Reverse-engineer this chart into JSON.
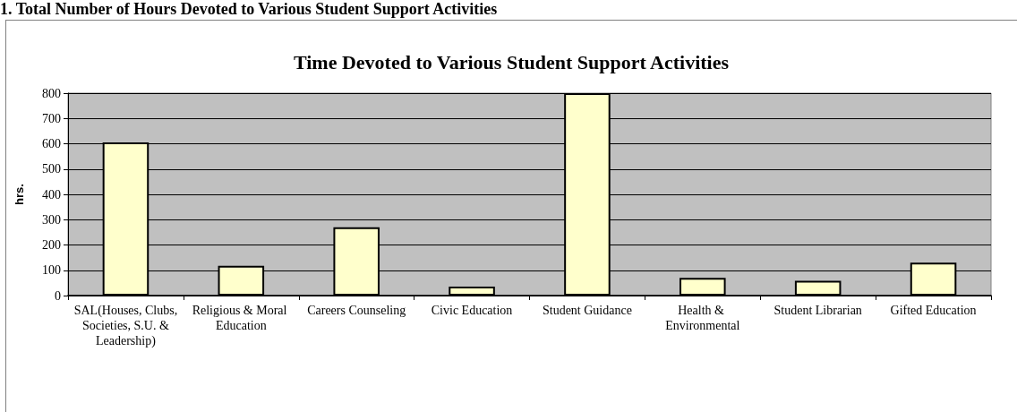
{
  "chart_data": {
    "type": "bar",
    "title": "Time Devoted to Various Student Support Activities",
    "annotations": [
      "1.  Total Number of Hours Devoted to Various Student Support Activities"
    ],
    "ylabel": "hrs.",
    "categories": [
      "SAL(Houses, Clubs, Societies, S.U. & Leadership)",
      "Religious & Moral Education",
      "Careers Counseling",
      "Civic Education",
      "Student Guidance",
      "Health & Environmental",
      "Student Librarian",
      "Gifted Education"
    ],
    "values": [
      605,
      118,
      270,
      35,
      800,
      70,
      58,
      130
    ],
    "color": "#ffffcc",
    "ylim": [
      0,
      800
    ],
    "yticks": [
      0,
      100,
      200,
      300,
      400,
      500,
      600,
      700,
      800
    ],
    "grid": "y"
  }
}
